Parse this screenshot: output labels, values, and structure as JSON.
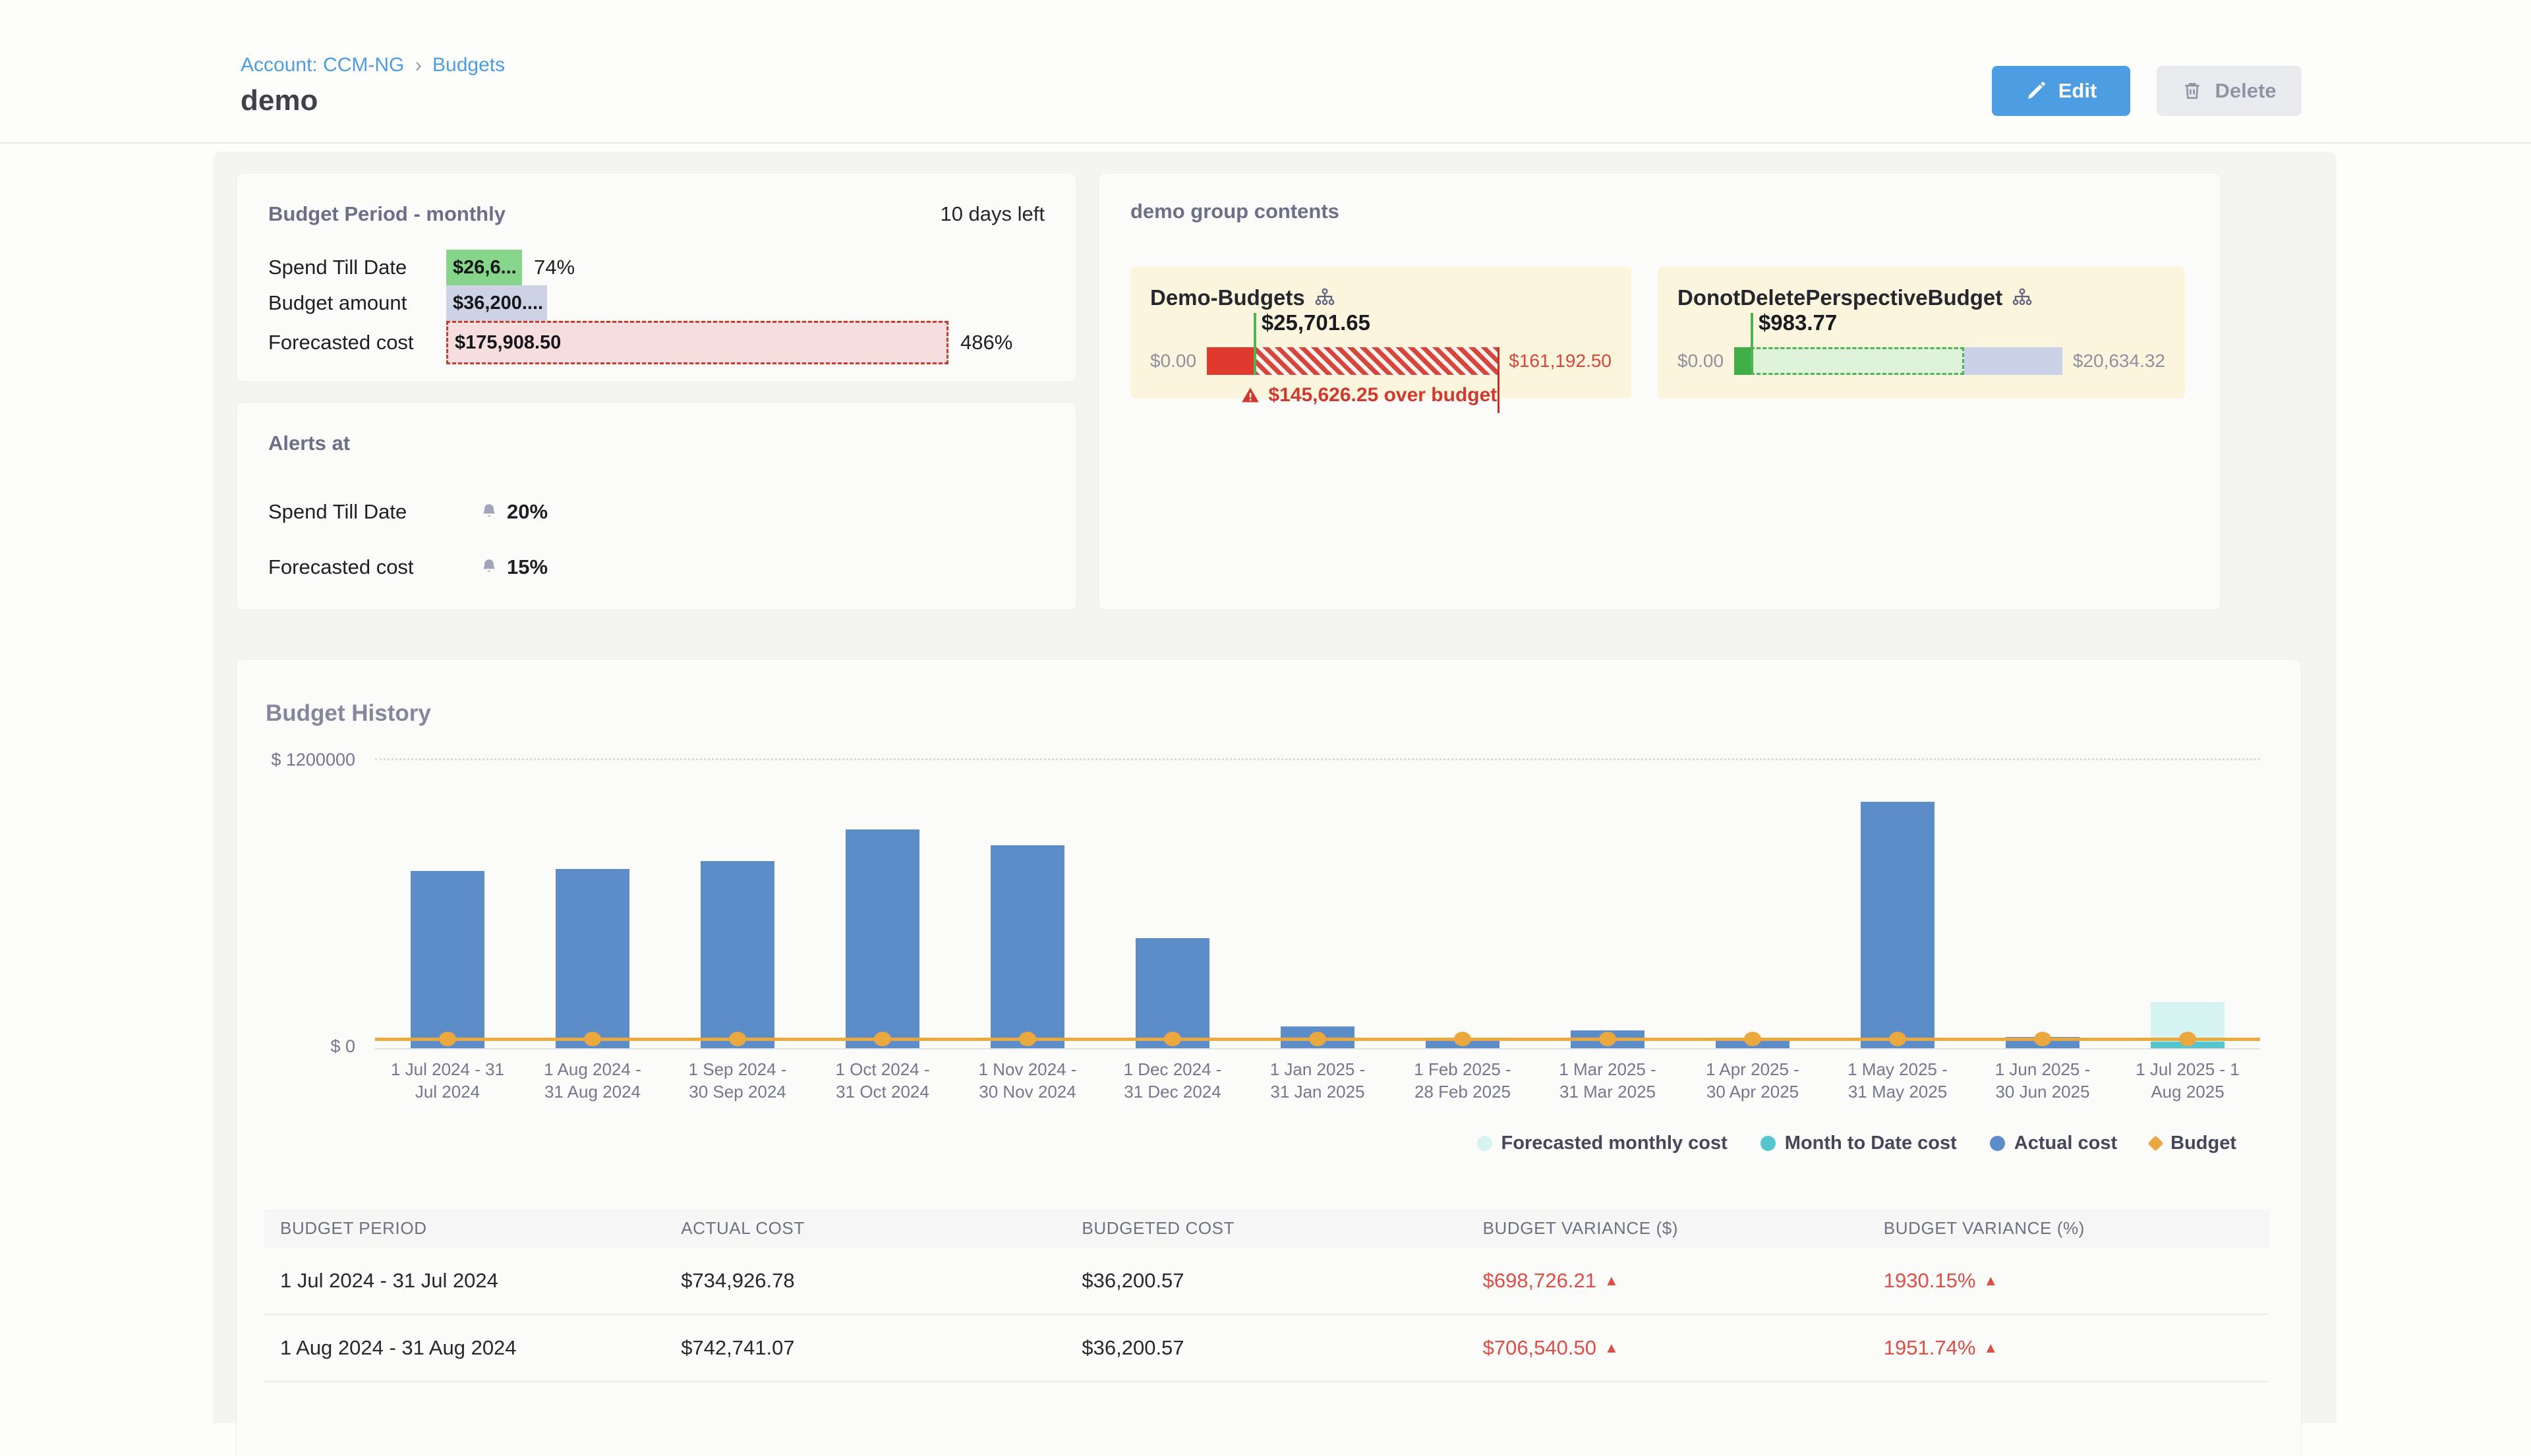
{
  "header": {
    "breadcrumb": {
      "account_link": "Account: CCM-NG",
      "separator": "›",
      "budgets_link": "Budgets"
    },
    "title": "demo",
    "edit_button": "Edit",
    "delete_button": "Delete"
  },
  "budget_period_card": {
    "title": "Budget Period - monthly",
    "days_left": "10 days left",
    "rows": [
      {
        "label": "Spend Till Date",
        "value": "$26,6...",
        "suffix": "74%",
        "type": "spend",
        "width_pct": 15.1
      },
      {
        "label": "Budget amount",
        "value": "$36,200....",
        "suffix": "",
        "type": "budget",
        "width_pct": 20.1
      },
      {
        "label": "Forecasted cost",
        "value": "$175,908.50",
        "suffix": "486%",
        "type": "forecast",
        "width_pct": 100
      }
    ]
  },
  "alerts_card": {
    "title": "Alerts at",
    "rows": [
      {
        "label": "Spend Till Date",
        "value": "20%"
      },
      {
        "label": "Forecasted cost",
        "value": "15%"
      }
    ]
  },
  "group_card": {
    "title": "demo group contents",
    "budgets": [
      {
        "name": "Demo-Budgets",
        "min_label": "$0.00",
        "max_label": "$161,192.50",
        "max_label_red": true,
        "marker_label": "$25,701.65",
        "marker_pct": 16,
        "segments": [
          {
            "kind": "solid-red",
            "pct": 16
          },
          {
            "kind": "hatch-red",
            "pct": 84
          }
        ],
        "end_line": true,
        "footer": "$145,626.25 over budget"
      },
      {
        "name": "DonotDeletePerspectiveBudget",
        "min_label": "$0.00",
        "max_label": "$20,634.32",
        "max_label_red": false,
        "marker_label": "$983.77",
        "marker_pct": 5,
        "segments": [
          {
            "kind": "solid-green",
            "pct": 5
          },
          {
            "kind": "dash-green",
            "pct": 65
          },
          {
            "kind": "lavender",
            "pct": 30
          }
        ],
        "end_line": false,
        "footer": ""
      }
    ]
  },
  "chart_data": {
    "type": "bar",
    "title": "Budget History",
    "ylim": [
      0,
      1200000
    ],
    "ytick_top": "$ 1200000",
    "ytick_bottom": "$ 0",
    "grid": "top-dotted",
    "legend_position": "bottom-right",
    "categories": [
      "1 Jul 2024 - 31 Jul 2024",
      "1 Aug 2024 - 31 Aug 2024",
      "1 Sep 2024 - 30 Sep 2024",
      "1 Oct 2024 - 31 Oct 2024",
      "1 Nov 2024 - 30 Nov 2024",
      "1 Dec 2024 - 31 Dec 2024",
      "1 Jan 2025 - 31 Jan 2025",
      "1 Feb 2025 - 28 Feb 2025",
      "1 Mar 2025 - 31 Mar 2025",
      "1 Apr 2025 - 30 Apr 2025",
      "1 May 2025 - 31 May 2025",
      "1 Jun 2025 - 30 Jun 2025",
      "1 Jul 2025 - 1 Aug 2025"
    ],
    "series": [
      {
        "name": "Actual cost",
        "type": "bar",
        "color": "#5c8dc8",
        "values": [
          734926.78,
          742741.07,
          775000,
          905000,
          840000,
          455000,
          90000,
          45000,
          75000,
          45000,
          1020000,
          46000,
          null
        ]
      },
      {
        "name": "Forecasted monthly cost",
        "type": "bar",
        "color": "#d5f3f1",
        "values": [
          null,
          null,
          null,
          null,
          null,
          null,
          null,
          null,
          null,
          null,
          null,
          null,
          190000
        ]
      },
      {
        "name": "Month to Date cost",
        "type": "bar-overlay",
        "color": "#55c6cf",
        "values": [
          null,
          null,
          null,
          null,
          null,
          null,
          null,
          null,
          null,
          null,
          null,
          null,
          27000
        ]
      },
      {
        "name": "Budget",
        "type": "line",
        "color": "#eaa83e",
        "values": [
          36200.57,
          36200.57,
          36200.57,
          36200.57,
          36200.57,
          36200.57,
          36200.57,
          36200.57,
          36200.57,
          36200.57,
          36200.57,
          36200.57,
          36200.57
        ]
      }
    ],
    "legend": [
      {
        "label": "Forecasted monthly cost",
        "shape": "circle",
        "color": "#d5f3f1"
      },
      {
        "label": "Month to Date cost",
        "shape": "circle",
        "color": "#55c6cf"
      },
      {
        "label": "Actual cost",
        "shape": "circle",
        "color": "#5c8dc8"
      },
      {
        "label": "Budget",
        "shape": "diamond",
        "color": "#eaa83e"
      }
    ]
  },
  "table": {
    "columns": [
      "BUDGET PERIOD",
      "ACTUAL COST",
      "BUDGETED COST",
      "BUDGET VARIANCE ($)",
      "BUDGET VARIANCE (%)"
    ],
    "rows": [
      {
        "period": "1 Jul 2024 - 31 Jul 2024",
        "actual_cost": "$734,926.78",
        "budgeted_cost": "$36,200.57",
        "variance_usd": "$698,726.21",
        "variance_pct": "1930.15%",
        "variance_direction": "up"
      },
      {
        "period": "1 Aug 2024 - 31 Aug 2024",
        "actual_cost": "$742,741.07",
        "budgeted_cost": "$36,200.57",
        "variance_usd": "$706,540.50",
        "variance_pct": "1951.74%",
        "variance_direction": "up"
      }
    ]
  },
  "colors": {
    "accent_blue": "#4d9de2",
    "link_blue": "#4d9ce0",
    "bar_blue": "#5c8dc8",
    "budget_orange": "#eaa83e",
    "mtd_cyan": "#55c6cf",
    "forecast_cyan": "#d5f3f1",
    "danger_red": "#ce3a31",
    "variance_red": "#dd4e47",
    "chip_green": "#87d58a",
    "chip_lavender": "#cdd2e4",
    "chip_pink": "#f6dede"
  }
}
